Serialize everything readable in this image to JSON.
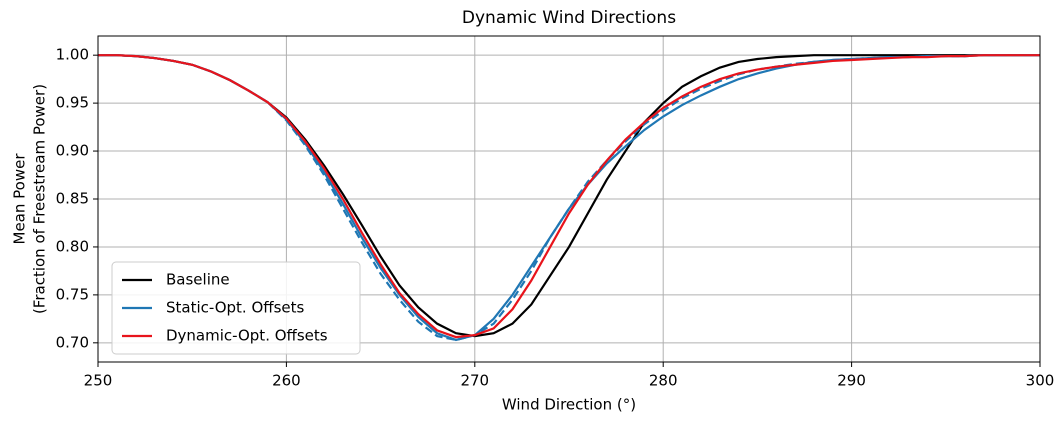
{
  "chart_data": {
    "type": "line",
    "title": "Dynamic Wind Directions",
    "xlabel": "Wind Direction (°)",
    "ylabel": [
      "Mean Power",
      "(Fraction of Freestream Power)"
    ],
    "x": [
      250,
      251,
      252,
      253,
      254,
      255,
      256,
      257,
      258,
      259,
      260,
      261,
      262,
      263,
      264,
      265,
      266,
      267,
      268,
      269,
      270,
      271,
      272,
      273,
      274,
      275,
      276,
      277,
      278,
      279,
      280,
      281,
      282,
      283,
      284,
      285,
      286,
      287,
      288,
      289,
      290,
      291,
      292,
      293,
      294,
      295,
      296,
      297,
      298,
      299,
      300
    ],
    "series": [
      {
        "name": "Baseline",
        "color": "#000000",
        "values": [
          1.0,
          1.0,
          0.999,
          0.997,
          0.994,
          0.99,
          0.983,
          0.974,
          0.963,
          0.951,
          0.935,
          0.912,
          0.885,
          0.855,
          0.823,
          0.79,
          0.76,
          0.737,
          0.72,
          0.71,
          0.707,
          0.71,
          0.72,
          0.74,
          0.77,
          0.8,
          0.835,
          0.87,
          0.9,
          0.93,
          0.95,
          0.967,
          0.978,
          0.987,
          0.993,
          0.996,
          0.998,
          0.999,
          1.0,
          1.0,
          1.0,
          1.0,
          1.0,
          1.0,
          1.0,
          1.0,
          1.0,
          1.0,
          1.0,
          1.0,
          1.0
        ]
      },
      {
        "name": "Static-Opt. Offsets",
        "color": "#1f77b4",
        "values": [
          1.0,
          1.0,
          0.999,
          0.997,
          0.994,
          0.99,
          0.983,
          0.974,
          0.963,
          0.951,
          0.933,
          0.908,
          0.878,
          0.845,
          0.81,
          0.778,
          0.75,
          0.727,
          0.71,
          0.703,
          0.708,
          0.725,
          0.75,
          0.78,
          0.81,
          0.84,
          0.865,
          0.887,
          0.905,
          0.922,
          0.936,
          0.948,
          0.958,
          0.967,
          0.975,
          0.981,
          0.986,
          0.99,
          0.993,
          0.995,
          0.996,
          0.997,
          0.998,
          0.998,
          0.999,
          0.999,
          0.999,
          1.0,
          1.0,
          1.0,
          1.0
        ]
      },
      {
        "color": "#1f77b4",
        "dashed": true,
        "values": [
          1.0,
          1.0,
          0.999,
          0.997,
          0.994,
          0.99,
          0.983,
          0.974,
          0.963,
          0.951,
          0.932,
          0.906,
          0.875,
          0.84,
          0.805,
          0.772,
          0.745,
          0.722,
          0.707,
          0.703,
          0.708,
          0.72,
          0.745,
          0.775,
          0.81,
          0.84,
          0.868,
          0.89,
          0.91,
          0.928,
          0.942,
          0.955,
          0.965,
          0.973,
          0.98,
          0.985,
          0.988,
          0.991,
          0.993,
          0.995,
          0.996,
          0.997,
          0.998,
          0.998,
          0.999,
          0.999,
          0.999,
          1.0,
          1.0,
          1.0,
          1.0
        ]
      },
      {
        "name": "Dynamic-Opt. Offsets",
        "color": "#e8141c",
        "values": [
          1.0,
          1.0,
          0.999,
          0.997,
          0.994,
          0.99,
          0.983,
          0.974,
          0.963,
          0.951,
          0.934,
          0.91,
          0.882,
          0.85,
          0.815,
          0.782,
          0.752,
          0.73,
          0.713,
          0.706,
          0.708,
          0.715,
          0.735,
          0.765,
          0.8,
          0.835,
          0.865,
          0.89,
          0.912,
          0.93,
          0.945,
          0.957,
          0.967,
          0.975,
          0.981,
          0.985,
          0.988,
          0.99,
          0.992,
          0.994,
          0.995,
          0.996,
          0.997,
          0.998,
          0.998,
          0.999,
          0.999,
          1.0,
          1.0,
          1.0,
          1.0
        ]
      }
    ],
    "xlim": [
      250,
      300
    ],
    "xticks": [
      250,
      260,
      270,
      280,
      290,
      300
    ],
    "ylim": [
      0.68,
      1.02
    ],
    "yticks": [
      {
        "value": 0.7,
        "label": "0.70"
      },
      {
        "value": 0.75,
        "label": "0.75"
      },
      {
        "value": 0.8,
        "label": "0.80"
      },
      {
        "value": 0.85,
        "label": "0.85"
      },
      {
        "value": 0.9,
        "label": "0.90"
      },
      {
        "value": 0.95,
        "label": "0.95"
      },
      {
        "value": 1.0,
        "label": "1.00"
      }
    ],
    "grid": true,
    "legend": "lower left"
  }
}
